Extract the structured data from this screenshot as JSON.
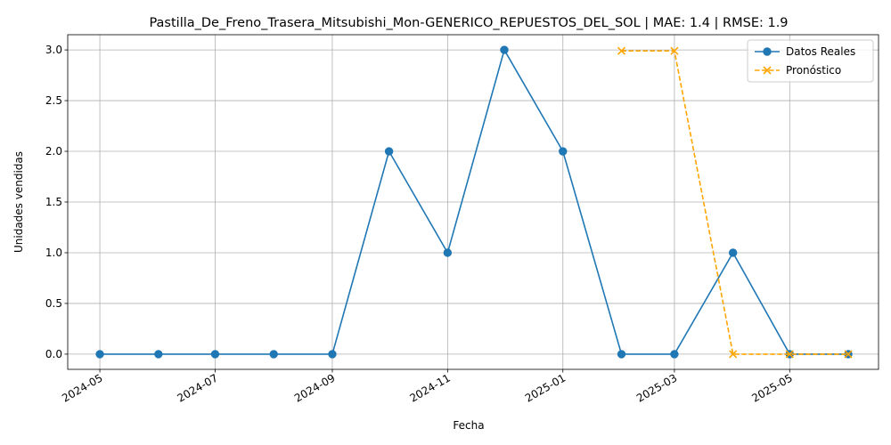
{
  "chart_data": {
    "type": "line",
    "title": "Pastilla_De_Freno_Trasera_Mitsubishi_Mon-GENERICO_REPUESTOS_DEL_SOL | MAE: 1.4 | RMSE: 1.9",
    "xlabel": "Fecha",
    "ylabel": "Unidades vendidas",
    "xlim": [
      "2024-04-14",
      "2025-06-17"
    ],
    "ylim": [
      -0.15,
      3.15
    ],
    "x_ticks": [
      "2024-05",
      "2024-07",
      "2024-09",
      "2024-11",
      "2025-01",
      "2025-03",
      "2025-05"
    ],
    "y_ticks": [
      "0.0",
      "0.5",
      "1.0",
      "1.5",
      "2.0",
      "2.5",
      "3.0"
    ],
    "grid": true,
    "legend_position": "top-right",
    "series": [
      {
        "name": "Datos Reales",
        "color": "#1f77b4",
        "marker": "circle",
        "linestyle": "solid",
        "x": [
          "2024-05-01",
          "2024-06-01",
          "2024-07-01",
          "2024-08-01",
          "2024-09-01",
          "2024-10-01",
          "2024-11-01",
          "2024-12-01",
          "2025-01-01",
          "2025-02-01",
          "2025-03-01",
          "2025-04-01",
          "2025-05-01",
          "2025-06-01"
        ],
        "values": [
          0,
          0,
          0,
          0,
          0,
          2,
          1,
          3,
          2,
          0,
          0,
          1,
          0,
          0
        ]
      },
      {
        "name": "Pronóstico",
        "color": "#ffa500",
        "marker": "x",
        "linestyle": "dashed",
        "x": [
          "2025-02-01",
          "2025-03-01",
          "2025-04-01",
          "2025-05-01",
          "2025-06-01"
        ],
        "values": [
          2.99,
          2.99,
          0.0,
          0.0,
          0.0
        ]
      }
    ]
  }
}
